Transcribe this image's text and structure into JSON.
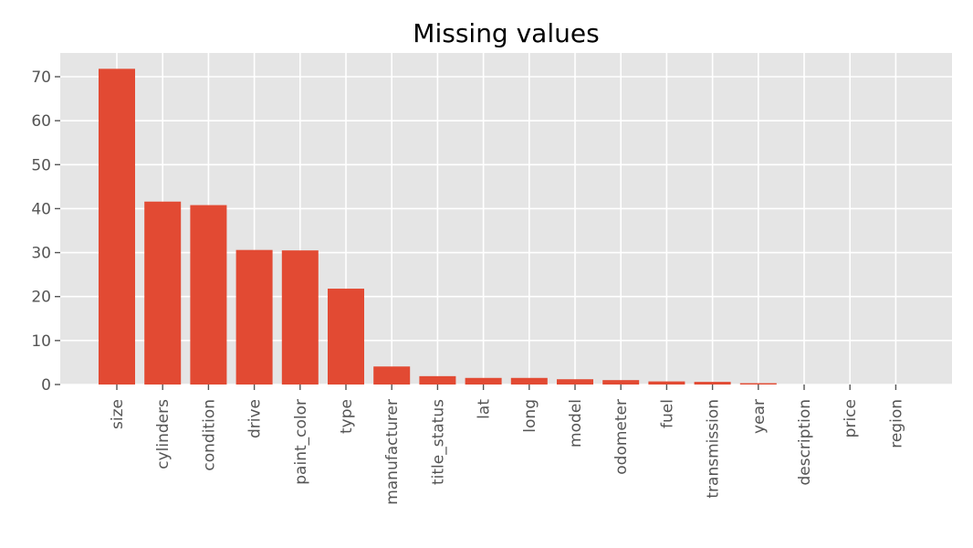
{
  "chart_data": {
    "type": "bar",
    "title": "Missing values",
    "xlabel": "",
    "ylabel": "",
    "categories": [
      "size",
      "cylinders",
      "condition",
      "drive",
      "paint_color",
      "type",
      "manufacturer",
      "title_status",
      "lat",
      "long",
      "model",
      "odometer",
      "fuel",
      "transmission",
      "year",
      "description",
      "price",
      "region"
    ],
    "values": [
      71.8,
      41.6,
      40.8,
      30.6,
      30.5,
      21.8,
      4.1,
      1.9,
      1.5,
      1.5,
      1.2,
      1.0,
      0.7,
      0.6,
      0.3,
      0.0,
      0.0,
      0.0
    ],
    "ylim": [
      0,
      75.4
    ],
    "yticks": [
      0,
      10,
      20,
      30,
      40,
      50,
      60,
      70
    ],
    "grid": true,
    "bar_color": "#E24A33",
    "background_color": "#E5E5E5",
    "grid_color": "#FFFFFF"
  }
}
